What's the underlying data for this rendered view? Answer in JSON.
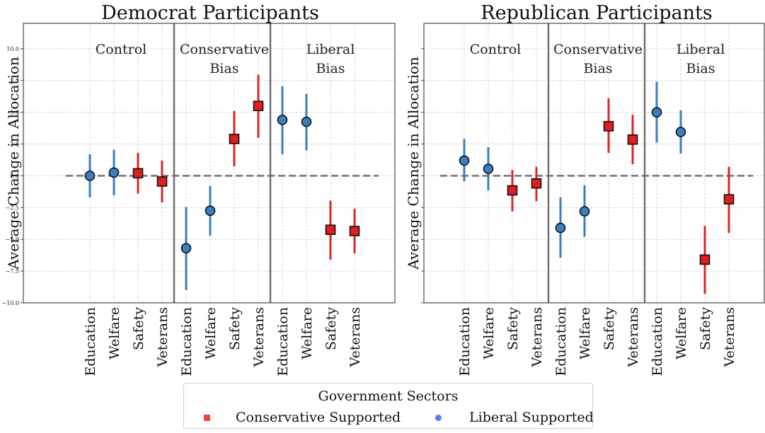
{
  "chart_data": [
    {
      "type": "scatter",
      "title": "Democrat Participants",
      "ylabel": "Average Change in Allocation",
      "ylim": [
        -10,
        12
      ],
      "yticks": [
        "−10.0",
        "−7.5",
        "−5.0",
        "−2.5",
        "0.0",
        "2.5",
        "5.0",
        "7.5",
        "10.0"
      ],
      "grid": true,
      "groups": [
        {
          "label": "Control",
          "points": [
            {
              "x": "Education",
              "support": "Liberal",
              "y": 0.0,
              "lo": -1.7,
              "hi": 1.7
            },
            {
              "x": "Welfare",
              "support": "Liberal",
              "y": 0.25,
              "lo": -1.55,
              "hi": 2.05
            },
            {
              "x": "Safety",
              "support": "Conservative",
              "y": 0.2,
              "lo": -1.4,
              "hi": 1.8
            },
            {
              "x": "Veterans",
              "support": "Conservative",
              "y": -0.45,
              "lo": -2.1,
              "hi": 1.2
            }
          ]
        },
        {
          "label": "Conservative\nBias",
          "points": [
            {
              "x": "Education",
              "support": "Liberal",
              "y": -5.7,
              "lo": -9.0,
              "hi": -2.45
            },
            {
              "x": "Welfare",
              "support": "Liberal",
              "y": -2.75,
              "lo": -4.7,
              "hi": -0.8
            },
            {
              "x": "Safety",
              "support": "Conservative",
              "y": 2.9,
              "lo": 0.75,
              "hi": 5.1
            },
            {
              "x": "Veterans",
              "support": "Conservative",
              "y": 5.5,
              "lo": 3.0,
              "hi": 7.95
            }
          ]
        },
        {
          "label": "Liberal\nBias",
          "points": [
            {
              "x": "Education",
              "support": "Liberal",
              "y": 4.4,
              "lo": 1.7,
              "hi": 7.05
            },
            {
              "x": "Welfare",
              "support": "Liberal",
              "y": 4.25,
              "lo": 2.0,
              "hi": 6.45
            },
            {
              "x": "Safety",
              "support": "Conservative",
              "y": -4.25,
              "lo": -6.6,
              "hi": -1.95
            },
            {
              "x": "Veterans",
              "support": "Conservative",
              "y": -4.35,
              "lo": -6.1,
              "hi": -2.6
            }
          ]
        }
      ]
    },
    {
      "type": "scatter",
      "title": "Republican Participants",
      "ylabel": "Average Change in Allocation",
      "ylim": [
        -10,
        12
      ],
      "grid": true,
      "groups": [
        {
          "label": "Control",
          "points": [
            {
              "x": "Education",
              "support": "Liberal",
              "y": 1.2,
              "lo": -0.45,
              "hi": 2.9
            },
            {
              "x": "Welfare",
              "support": "Liberal",
              "y": 0.55,
              "lo": -1.15,
              "hi": 2.25
            },
            {
              "x": "Safety",
              "support": "Conservative",
              "y": -1.15,
              "lo": -2.8,
              "hi": 0.45
            },
            {
              "x": "Veterans",
              "support": "Conservative",
              "y": -0.6,
              "lo": -2.0,
              "hi": 0.7
            }
          ]
        },
        {
          "label": "Conservative\nBias",
          "points": [
            {
              "x": "Education",
              "support": "Liberal",
              "y": -4.1,
              "lo": -6.45,
              "hi": -1.7
            },
            {
              "x": "Welfare",
              "support": "Liberal",
              "y": -2.8,
              "lo": -4.8,
              "hi": -0.75
            },
            {
              "x": "Safety",
              "support": "Conservative",
              "y": 3.9,
              "lo": 1.8,
              "hi": 6.1
            },
            {
              "x": "Veterans",
              "support": "Conservative",
              "y": 2.85,
              "lo": 0.9,
              "hi": 4.8
            }
          ]
        },
        {
          "label": "Liberal\nBias",
          "points": [
            {
              "x": "Education",
              "support": "Liberal",
              "y": 5.0,
              "lo": 2.6,
              "hi": 7.4
            },
            {
              "x": "Welfare",
              "support": "Liberal",
              "y": 3.45,
              "lo": 1.75,
              "hi": 5.15
            },
            {
              "x": "Safety",
              "support": "Conservative",
              "y": -6.6,
              "lo": -9.3,
              "hi": -3.95
            },
            {
              "x": "Veterans",
              "support": "Conservative",
              "y": -1.85,
              "lo": -4.5,
              "hi": 0.7
            }
          ]
        }
      ]
    }
  ],
  "legend": {
    "title": "Government Sectors",
    "items": [
      {
        "label": "Conservative Supported",
        "color": "#ef4444",
        "marker": "square"
      },
      {
        "label": "Liberal Supported",
        "color": "#5b7fe8",
        "marker": "circle"
      }
    ]
  },
  "colors": {
    "conservative_bar": "#dc2626",
    "conservative_marker": "#e11d1d",
    "liberal_bar": "#3a7ebf",
    "liberal_marker": "#3b7fbf",
    "divider": "#707070",
    "zero_line": "#777777",
    "grid": "#cccccc"
  }
}
